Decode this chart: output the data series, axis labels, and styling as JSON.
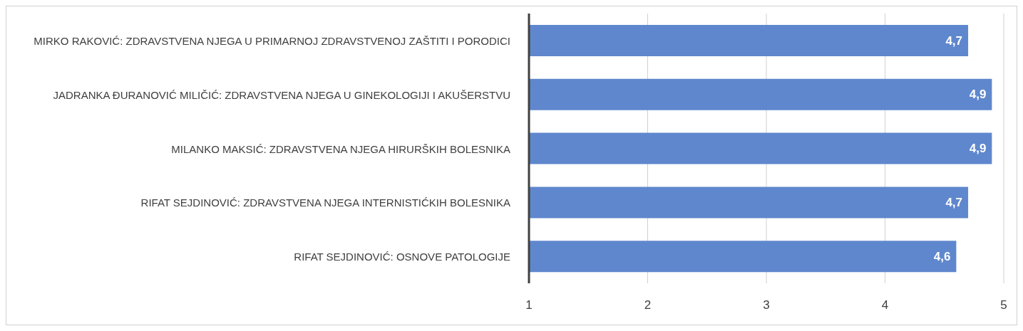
{
  "chart_data": {
    "type": "bar",
    "orientation": "horizontal",
    "categories": [
      "MIRKO RAKOVIĆ: ZDRAVSTVENA NJEGA U PRIMARNOJ ZDRAVSTVENOJ ZAŠTITI I PORODICI",
      "JADRANKA ĐURANOVIĆ MILIČIĆ: ZDRAVSTVENA NJEGA U GINEKOLOGIJI I AKUŠERSTVU",
      "MILANKO MAKSIĆ: ZDRAVSTVENA NJEGA HIRURŠKIH BOLESNIKA",
      "RIFAT SEJDINOVIĆ: ZDRAVSTVENA NJEGA INTERNISTIĆKIH BOLESNIKA",
      "RIFAT SEJDINOVIĆ: OSNOVE PATOLOGIJE"
    ],
    "values": [
      4.7,
      4.9,
      4.9,
      4.7,
      4.6
    ],
    "value_labels": [
      "4,7",
      "4,9",
      "4,9",
      "4,7",
      "4,6"
    ],
    "color": "#5f87cd",
    "xlim": [
      1,
      5
    ],
    "xticks": [
      1,
      2,
      3,
      4,
      5
    ],
    "grid": "x"
  }
}
